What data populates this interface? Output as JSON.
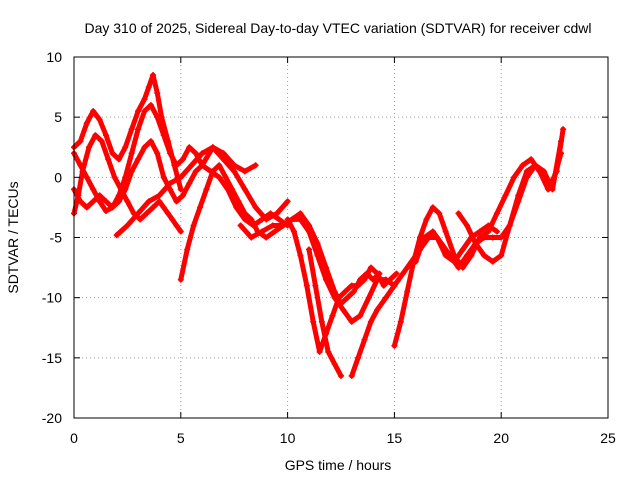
{
  "chart_data": {
    "type": "scatter",
    "title": "Day 310 of 2025, Sidereal Day-to-day VTEC variation (SDTVAR) for receiver cdwl",
    "xlabel": "GPS time / hours",
    "ylabel": "SDTVAR / TECUs",
    "xlim": [
      0,
      25
    ],
    "ylim": [
      -20,
      10
    ],
    "x_ticks": [
      "0",
      "5",
      "10",
      "15",
      "20",
      "25"
    ],
    "y_ticks": [
      "-20",
      "-15",
      "-10",
      "-5",
      "0",
      "5",
      "10"
    ],
    "grid": true,
    "legend": "none",
    "marker": "plus",
    "series_color": "#ff0000",
    "series": [
      {
        "x": [
          0.0,
          0.3,
          0.6,
          0.9,
          1.2,
          1.5,
          1.8,
          2.1,
          2.4,
          2.7,
          3.0,
          3.3,
          3.5,
          3.7,
          3.9,
          4.1,
          4.4,
          4.7,
          5.0
        ],
        "y": [
          2.5,
          3.0,
          4.5,
          5.5,
          4.8,
          3.5,
          2.0,
          1.5,
          2.5,
          4.0,
          5.5,
          6.5,
          7.5,
          8.5,
          7.0,
          5.0,
          3.0,
          1.0,
          -1.0
        ]
      },
      {
        "x": [
          0.0,
          0.3,
          0.6,
          0.9,
          1.2,
          1.5,
          1.8,
          2.1,
          2.4,
          2.7,
          3.0,
          3.3,
          3.6,
          3.9,
          4.2,
          4.5,
          4.8,
          5.1,
          5.4,
          5.7,
          6.0,
          6.4,
          6.8,
          7.2,
          7.6,
          8.0,
          8.4,
          8.8,
          9.2,
          9.6,
          10.0
        ],
        "y": [
          -1.0,
          -2.0,
          -2.5,
          -2.0,
          -1.5,
          -2.0,
          -2.5,
          -1.5,
          0.0,
          2.0,
          4.0,
          5.5,
          6.0,
          5.0,
          3.5,
          2.0,
          1.0,
          1.5,
          2.5,
          2.0,
          1.0,
          0.5,
          0.0,
          -1.0,
          -2.5,
          -3.5,
          -4.0,
          -3.5,
          -3.0,
          -3.5,
          -4.0
        ]
      },
      {
        "x": [
          0.0,
          0.3,
          0.6,
          0.9,
          1.2,
          1.5,
          1.8,
          2.1,
          2.4,
          2.7,
          3.0,
          3.3,
          3.6,
          3.9,
          4.2,
          4.5,
          4.8,
          5.1,
          5.4,
          5.7,
          6.0,
          6.5,
          7.0,
          7.5,
          8.0,
          8.5
        ],
        "y": [
          2.0,
          1.0,
          0.0,
          -1.0,
          -2.0,
          -2.8,
          -2.5,
          -2.0,
          -1.0,
          0.5,
          1.5,
          2.5,
          3.0,
          2.0,
          0.0,
          -1.0,
          -2.0,
          -1.5,
          -0.5,
          0.5,
          1.0,
          2.5,
          2.0,
          1.0,
          0.5,
          1.0
        ]
      },
      {
        "x": [
          0.0,
          0.2,
          0.4,
          0.7,
          1.0,
          1.3,
          1.6,
          1.9,
          2.2,
          2.5,
          2.8,
          3.1,
          3.4,
          3.7,
          4.0,
          4.2,
          4.4,
          4.6,
          4.8,
          5.0
        ],
        "y": [
          -3.0,
          -1.5,
          0.5,
          2.5,
          3.5,
          3.0,
          1.5,
          0.0,
          -1.0,
          -2.0,
          -3.0,
          -3.5,
          -3.0,
          -2.5,
          -2.0,
          -2.5,
          -3.0,
          -3.5,
          -4.0,
          -4.5
        ]
      },
      {
        "x": [
          2.0,
          2.5,
          3.0,
          3.5,
          4.0,
          4.5,
          5.0,
          5.5,
          6.0,
          6.5,
          7.0,
          7.5,
          8.0,
          8.5,
          9.0,
          9.5,
          10.0
        ],
        "y": [
          -4.8,
          -4.0,
          -3.0,
          -2.0,
          -1.5,
          -0.5,
          0.0,
          1.0,
          2.0,
          2.5,
          1.5,
          0.5,
          -1.0,
          -2.5,
          -3.5,
          -3.0,
          -2.0
        ]
      },
      {
        "x": [
          5.0,
          5.3,
          5.6,
          5.9,
          6.2,
          6.5,
          6.8,
          7.1,
          7.4,
          7.7,
          8.0,
          8.3,
          8.6,
          9.0,
          9.4,
          9.8,
          10.2,
          10.6,
          11.0,
          11.4,
          11.8,
          12.2,
          12.6,
          13.0,
          13.4,
          13.8,
          14.2,
          14.6,
          15.0
        ],
        "y": [
          -8.5,
          -6.0,
          -4.0,
          -2.5,
          -1.0,
          0.5,
          1.0,
          0.0,
          -1.0,
          -2.0,
          -3.0,
          -3.5,
          -4.5,
          -5.0,
          -4.5,
          -4.0,
          -3.5,
          -3.5,
          -4.5,
          -6.5,
          -8.5,
          -10.0,
          -11.0,
          -12.0,
          -11.5,
          -10.0,
          -8.5,
          -8.5,
          -9.0
        ]
      },
      {
        "x": [
          7.8,
          8.3,
          8.8,
          9.3,
          9.8,
          10.2,
          10.6,
          11.0,
          11.4,
          11.8,
          12.2,
          12.5,
          12.8,
          13.1,
          13.4,
          13.7,
          14.0,
          14.3
        ],
        "y": [
          -4.0,
          -5.0,
          -4.5,
          -4.0,
          -4.0,
          -3.5,
          -3.0,
          -4.0,
          -5.5,
          -7.5,
          -9.5,
          -10.5,
          -10.0,
          -9.5,
          -8.5,
          -8.0,
          -8.5,
          -8.0
        ]
      },
      {
        "x": [
          10.0,
          10.3,
          10.6,
          10.9,
          11.2,
          11.5,
          11.8,
          12.1,
          12.4,
          12.7,
          13.0,
          13.3,
          13.6,
          13.9,
          14.2,
          14.5,
          14.8,
          15.1
        ],
        "y": [
          -3.5,
          -4.5,
          -6.5,
          -9.0,
          -12.0,
          -14.5,
          -13.0,
          -11.5,
          -10.0,
          -9.5,
          -9.0,
          -9.0,
          -8.5,
          -7.5,
          -8.0,
          -9.0,
          -8.5,
          -8.0
        ]
      },
      {
        "x": [
          11.0,
          11.3,
          11.6,
          11.9,
          12.2,
          12.5
        ],
        "y": [
          -6.0,
          -9.0,
          -12.0,
          -14.5,
          -15.5,
          -16.5
        ]
      },
      {
        "x": [
          13.0,
          13.3,
          13.6,
          13.9,
          14.2,
          14.6,
          15.0,
          15.4,
          15.8,
          16.2,
          16.6,
          17.0,
          17.4,
          17.8,
          18.2,
          18.6,
          19.0,
          19.4,
          19.8
        ],
        "y": [
          -16.5,
          -15.0,
          -13.5,
          -12.0,
          -11.0,
          -10.0,
          -9.0,
          -8.0,
          -7.0,
          -6.0,
          -5.0,
          -5.0,
          -6.5,
          -7.0,
          -6.0,
          -5.0,
          -4.5,
          -4.0,
          -4.5
        ]
      },
      {
        "x": [
          15.0,
          15.3,
          15.6,
          15.9,
          16.2,
          16.5,
          16.8,
          17.1,
          17.4,
          17.8,
          18.2,
          18.6,
          19.0,
          19.4,
          19.8,
          20.2,
          20.6,
          21.0,
          21.4,
          21.8,
          22.2,
          22.6,
          22.9
        ],
        "y": [
          -14.0,
          -12.0,
          -9.5,
          -7.0,
          -5.0,
          -3.5,
          -2.5,
          -3.0,
          -4.5,
          -6.5,
          -7.5,
          -6.5,
          -5.0,
          -4.5,
          -3.0,
          -1.5,
          0.0,
          1.0,
          1.5,
          0.5,
          -1.0,
          0.5,
          4.0
        ]
      },
      {
        "x": [
          16.0,
          16.4,
          16.8,
          17.2,
          17.6,
          18.0,
          18.4,
          18.8,
          19.2,
          19.6,
          20.0,
          20.4,
          20.8,
          21.2,
          21.6,
          22.0,
          22.4,
          22.8
        ],
        "y": [
          -7.0,
          -5.0,
          -4.5,
          -5.5,
          -6.5,
          -7.5,
          -6.5,
          -5.5,
          -5.0,
          -5.0,
          -5.0,
          -4.0,
          -2.0,
          0.0,
          1.0,
          0.5,
          -1.0,
          3.0
        ]
      },
      {
        "x": [
          18.0,
          18.4,
          18.8,
          19.2,
          19.6,
          20.0,
          20.4,
          20.8,
          21.2,
          21.6,
          22.0,
          22.4,
          22.8
        ],
        "y": [
          -3.0,
          -4.0,
          -5.5,
          -6.5,
          -7.0,
          -6.5,
          -4.0,
          -1.5,
          0.5,
          1.0,
          0.0,
          -0.5,
          2.0
        ]
      }
    ]
  }
}
